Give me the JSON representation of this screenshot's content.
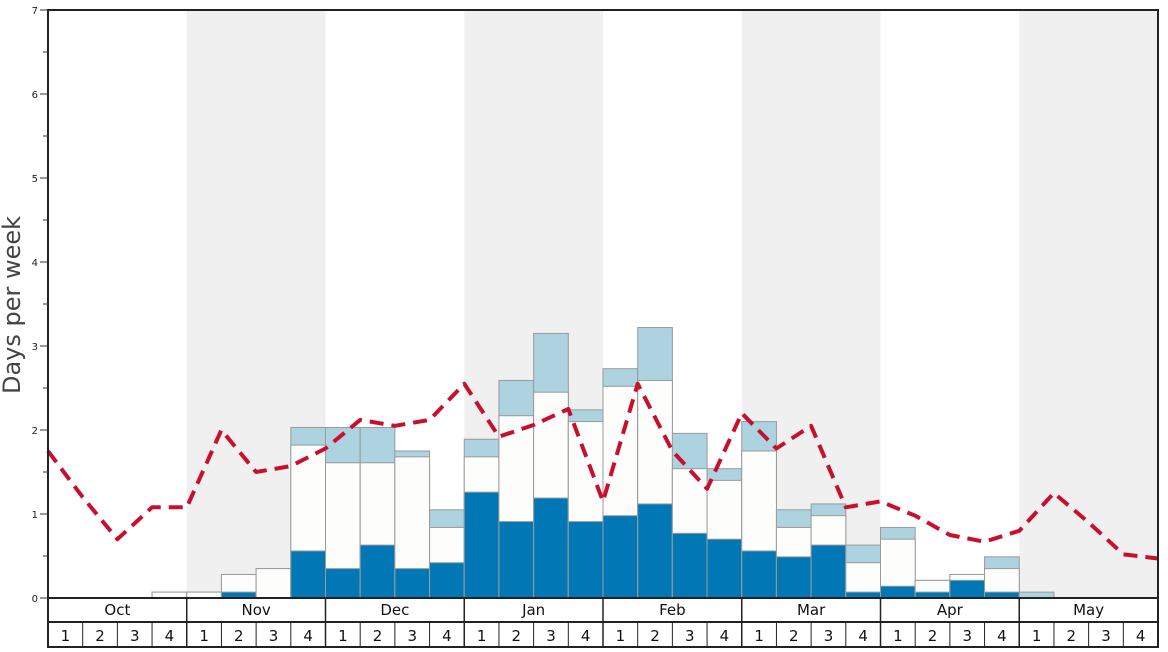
{
  "chart_data": {
    "type": "bar",
    "ylabel": "Days per week",
    "ylim": [
      0,
      7
    ],
    "y_ticks": [
      "0",
      "1",
      "2",
      "3",
      "4",
      "5",
      "6",
      "7"
    ],
    "months": [
      "Oct",
      "Nov",
      "Dec",
      "Jan",
      "Feb",
      "Mar",
      "Apr",
      "May"
    ],
    "week_labels": [
      "1",
      "2",
      "3",
      "4"
    ],
    "stacking": "cumulative",
    "series": [
      {
        "name": "series-dark-blue",
        "color": "#0277b6",
        "values": [
          0,
          0,
          0,
          0,
          0,
          0.07,
          0,
          0.56,
          0.35,
          0.63,
          0.35,
          0.42,
          1.26,
          0.91,
          1.19,
          0.91,
          0.98,
          1.12,
          0.77,
          0.7,
          0.56,
          0.49,
          0.63,
          0.07,
          0.14,
          0.07,
          0.21,
          0.07,
          0,
          0,
          0,
          0
        ]
      },
      {
        "name": "series-white",
        "color": "#fdfefc",
        "values": [
          0,
          0,
          0,
          0.07,
          0.07,
          0.28,
          0.35,
          1.82,
          1.61,
          1.61,
          1.68,
          0.84,
          1.68,
          2.17,
          2.45,
          2.1,
          2.52,
          2.59,
          1.54,
          1.4,
          1.75,
          0.84,
          0.98,
          0.42,
          0.7,
          0.21,
          0.28,
          0.35,
          0,
          0,
          0,
          0
        ]
      },
      {
        "name": "series-light-blue",
        "color": "#acd3df",
        "values": [
          0,
          0,
          0,
          0.07,
          0.07,
          0.28,
          0.35,
          2.03,
          2.03,
          2.03,
          1.75,
          1.05,
          1.89,
          2.59,
          3.15,
          2.24,
          2.73,
          3.22,
          1.96,
          1.54,
          2.1,
          1.05,
          1.12,
          0.63,
          0.84,
          0.21,
          0.28,
          0.49,
          0.07,
          0,
          0,
          0
        ]
      }
    ],
    "line": {
      "name": "average",
      "color": "#c8102e",
      "style": "dashed",
      "values": [
        1.75,
        1.2,
        0.7,
        1.08,
        1.08,
        2.0,
        1.5,
        1.57,
        1.78,
        2.12,
        2.05,
        2.12,
        2.55,
        1.92,
        2.06,
        2.25,
        1.15,
        2.55,
        1.75,
        1.3,
        2.2,
        1.78,
        2.05,
        1.08,
        1.15,
        0.98,
        0.75,
        0.67,
        0.8,
        1.25,
        0.9,
        0.52,
        0.47
      ]
    }
  }
}
